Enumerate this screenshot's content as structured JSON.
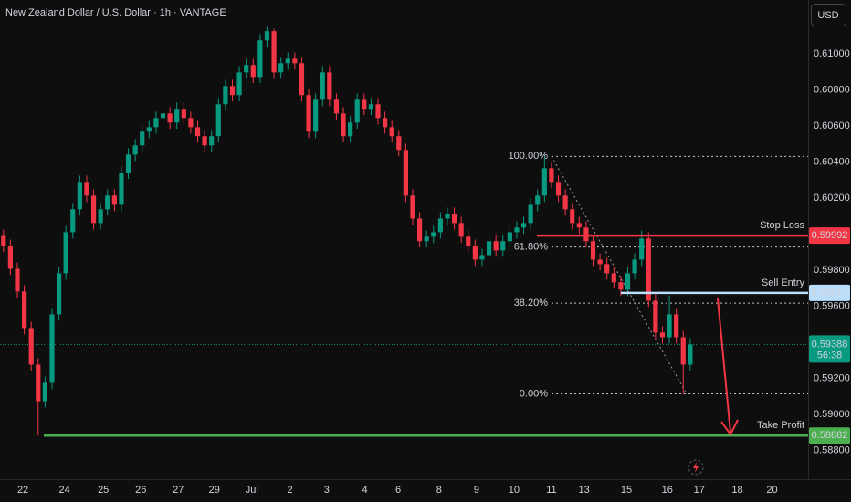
{
  "chart_data": {
    "type": "candlestick",
    "title": "New Zealand Dollar / U.S. Dollar · 1h · VANTAGE",
    "currency": "USD",
    "up_color": "#089981",
    "down_color": "#f23645",
    "open": [
      0.5999,
      0.59935,
      0.59808,
      0.59682,
      0.59479,
      0.59276,
      0.59073,
      0.59175,
      0.59555,
      0.59783,
      0.60011,
      0.60138,
      0.6029,
      0.60214,
      0.60062,
      0.60138,
      0.60214,
      0.60163,
      0.60341,
      0.60442,
      0.60493,
      0.60569,
      0.60594,
      0.60645,
      0.6067,
      0.6062,
      0.60696,
      0.60645,
      0.60594,
      0.60544,
      0.60493,
      0.60544,
      0.60721,
      0.60822,
      0.60772,
      0.60898,
      0.60939,
      0.60873,
      0.61076,
      0.61127,
      0.60898,
      0.60949,
      0.60974,
      0.60949,
      0.60772,
      0.60569,
      0.60746,
      0.60898,
      0.60746,
      0.6067,
      0.60544,
      0.6062,
      0.60746,
      0.60696,
      0.60721,
      0.60645,
      0.60594,
      0.60544,
      0.60468,
      0.60214,
      0.60087,
      0.59961,
      0.59986,
      0.60011,
      0.60087,
      0.60113,
      0.60062,
      0.59986,
      0.59935,
      0.59859,
      0.59884,
      0.59961,
      0.5991,
      0.59961,
      0.60011,
      0.60037,
      0.60062,
      0.60163,
      0.60214,
      0.60366,
      0.6029,
      0.60214,
      0.60138,
      0.60062,
      0.60037,
      0.59961,
      0.59859,
      0.59834,
      0.59783,
      0.59733,
      0.59692,
      0.59783,
      0.59859,
      0.59976,
      0.59631,
      0.59454,
      0.59428,
      0.59555,
      0.59428,
      0.59276
    ],
    "high": [
      0.60025,
      0.5997,
      0.59843,
      0.59717,
      0.59514,
      0.59311,
      0.5921,
      0.5959,
      0.59818,
      0.60046,
      0.60173,
      0.60325,
      0.60325,
      0.60249,
      0.60173,
      0.60249,
      0.60249,
      0.60376,
      0.60477,
      0.60528,
      0.60604,
      0.60629,
      0.6068,
      0.60705,
      0.60705,
      0.60731,
      0.60731,
      0.6068,
      0.60629,
      0.60579,
      0.60579,
      0.60756,
      0.60857,
      0.60857,
      0.60933,
      0.60974,
      0.60974,
      0.61111,
      0.6115,
      0.6114,
      0.60984,
      0.61009,
      0.61009,
      0.60984,
      0.60807,
      0.60781,
      0.60933,
      0.60933,
      0.60781,
      0.60705,
      0.60655,
      0.60781,
      0.60781,
      0.60756,
      0.60756,
      0.6068,
      0.60629,
      0.60579,
      0.60503,
      0.60249,
      0.60122,
      0.60021,
      0.60046,
      0.60122,
      0.60148,
      0.60148,
      0.60097,
      0.60021,
      0.5997,
      0.59919,
      0.59996,
      0.59996,
      0.59996,
      0.60046,
      0.60072,
      0.60097,
      0.60198,
      0.60249,
      0.60432,
      0.60401,
      0.60325,
      0.60249,
      0.60173,
      0.60097,
      0.60072,
      0.59996,
      0.59894,
      0.59869,
      0.59818,
      0.59768,
      0.59818,
      0.59894,
      0.6002,
      0.60011,
      0.59666,
      0.59489,
      0.5966,
      0.5959,
      0.59463,
      0.59423
    ],
    "low": [
      0.599,
      0.59773,
      0.59647,
      0.59444,
      0.59241,
      0.58882,
      0.59038,
      0.5914,
      0.5952,
      0.59748,
      0.59976,
      0.60103,
      0.60179,
      0.60027,
      0.60027,
      0.60103,
      0.60128,
      0.60128,
      0.60306,
      0.60407,
      0.60458,
      0.60534,
      0.60559,
      0.6061,
      0.60585,
      0.60585,
      0.6061,
      0.60559,
      0.60509,
      0.60458,
      0.60458,
      0.60509,
      0.60686,
      0.60737,
      0.60737,
      0.60863,
      0.60838,
      0.60838,
      0.61041,
      0.60863,
      0.60863,
      0.60914,
      0.60914,
      0.60737,
      0.60534,
      0.60534,
      0.60711,
      0.60711,
      0.60635,
      0.60509,
      0.60509,
      0.60585,
      0.60661,
      0.60661,
      0.6061,
      0.60559,
      0.60509,
      0.60433,
      0.60179,
      0.60052,
      0.59926,
      0.59926,
      0.59951,
      0.59976,
      0.60052,
      0.60027,
      0.59951,
      0.599,
      0.59824,
      0.59824,
      0.59849,
      0.59875,
      0.59875,
      0.59926,
      0.59976,
      0.60002,
      0.60027,
      0.60128,
      0.60179,
      0.60255,
      0.60179,
      0.60103,
      0.60027,
      0.60002,
      0.59926,
      0.59824,
      0.59799,
      0.59748,
      0.59698,
      0.59657,
      0.59657,
      0.59748,
      0.59824,
      0.59596,
      0.59419,
      0.59393,
      0.59393,
      0.59393,
      0.5911,
      0.59241
    ],
    "close": [
      0.59935,
      0.59808,
      0.59682,
      0.59479,
      0.59276,
      0.59073,
      0.59175,
      0.59555,
      0.59783,
      0.60011,
      0.60138,
      0.6029,
      0.60214,
      0.60062,
      0.60138,
      0.60214,
      0.60163,
      0.60341,
      0.60442,
      0.60493,
      0.60569,
      0.60594,
      0.60645,
      0.6067,
      0.6062,
      0.60696,
      0.60645,
      0.60594,
      0.60544,
      0.60493,
      0.60544,
      0.60721,
      0.60822,
      0.60772,
      0.60898,
      0.60939,
      0.60873,
      0.61076,
      0.61127,
      0.60898,
      0.60949,
      0.60974,
      0.60949,
      0.60772,
      0.60569,
      0.60746,
      0.60898,
      0.60746,
      0.6067,
      0.60544,
      0.6062,
      0.60746,
      0.60696,
      0.60721,
      0.60645,
      0.60594,
      0.60544,
      0.60468,
      0.60214,
      0.60087,
      0.59961,
      0.59986,
      0.60011,
      0.60087,
      0.60113,
      0.60062,
      0.59986,
      0.59935,
      0.59859,
      0.59884,
      0.59961,
      0.5991,
      0.59961,
      0.60011,
      0.60037,
      0.60062,
      0.60163,
      0.60214,
      0.60366,
      0.6029,
      0.60214,
      0.60138,
      0.60062,
      0.60037,
      0.59961,
      0.59859,
      0.59834,
      0.59783,
      0.59733,
      0.59692,
      0.59783,
      0.59859,
      0.59976,
      0.59631,
      0.59454,
      0.59428,
      0.59555,
      0.59428,
      0.59276,
      0.59388
    ],
    "xlim": [
      -0.5,
      116
    ],
    "xticks": [
      {
        "value": 2.8,
        "label": "22"
      },
      {
        "value": 8.8,
        "label": "24"
      },
      {
        "value": 14.4,
        "label": "25"
      },
      {
        "value": 19.8,
        "label": "26"
      },
      {
        "value": 25.2,
        "label": "27"
      },
      {
        "value": 30.4,
        "label": "29"
      },
      {
        "value": 35.8,
        "label": "Jul"
      },
      {
        "value": 41.3,
        "label": "2"
      },
      {
        "value": 46.6,
        "label": "3"
      },
      {
        "value": 52.1,
        "label": "4"
      },
      {
        "value": 56.9,
        "label": "6"
      },
      {
        "value": 62.8,
        "label": "8"
      },
      {
        "value": 68.2,
        "label": "9"
      },
      {
        "value": 73.6,
        "label": "10"
      },
      {
        "value": 79,
        "label": "11"
      },
      {
        "value": 83.7,
        "label": "13"
      },
      {
        "value": 89.8,
        "label": "15"
      },
      {
        "value": 95.7,
        "label": "16"
      },
      {
        "value": 100.3,
        "label": "17"
      },
      {
        "value": 105.8,
        "label": "18"
      },
      {
        "value": 110.8,
        "label": "20"
      }
    ],
    "ylim": [
      0.5864,
      0.613
    ],
    "yticks": [
      {
        "value": 0.588,
        "label": "0.58800"
      },
      {
        "value": 0.59,
        "label": "0.59000"
      },
      {
        "value": 0.592,
        "label": "0.59200"
      },
      {
        "value": 0.594,
        "label": "0.59400"
      },
      {
        "value": 0.596,
        "label": "0.59600"
      },
      {
        "value": 0.598,
        "label": "0.59800"
      },
      {
        "value": 0.6,
        "label": "0.60000"
      },
      {
        "value": 0.602,
        "label": "0.60200"
      },
      {
        "value": 0.604,
        "label": "0.60400"
      },
      {
        "value": 0.606,
        "label": "0.60600"
      },
      {
        "value": 0.608,
        "label": "0.60800"
      },
      {
        "value": 0.61,
        "label": "0.61000"
      }
    ],
    "grid": false,
    "fibonacci": [
      {
        "label": "100.00%",
        "value": 0.60432
      },
      {
        "label": "61.80%",
        "value": 0.59929
      },
      {
        "label": "38.20%",
        "value": 0.59617
      },
      {
        "label": "0.00%",
        "value": 0.59114
      }
    ],
    "levels": [
      {
        "name": "Stop Loss",
        "value": 0.59992,
        "label": "0.59992",
        "color": "#f23645"
      },
      {
        "name": "Sell Entry",
        "value": 0.59674,
        "label": "0.59674",
        "color": "#bbdefb"
      },
      {
        "name": "Take Profit",
        "value": 0.58882,
        "label": "0.58882",
        "color": "#4caf50"
      }
    ],
    "last_price": {
      "value": 0.59388,
      "label": "0.59388",
      "countdown": "56:38"
    }
  }
}
